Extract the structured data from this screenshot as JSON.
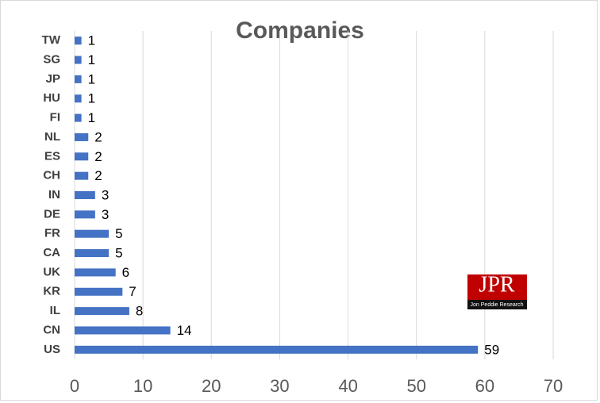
{
  "chart_data": {
    "type": "hbar",
    "title": "Companies",
    "categories": [
      "TW",
      "SG",
      "JP",
      "HU",
      "FI",
      "NL",
      "ES",
      "CH",
      "IN",
      "DE",
      "FR",
      "CA",
      "UK",
      "KR",
      "IL",
      "CN",
      "US"
    ],
    "values": [
      1,
      1,
      1,
      1,
      1,
      2,
      2,
      2,
      3,
      3,
      5,
      5,
      6,
      7,
      8,
      14,
      59
    ],
    "color": "#4472c4",
    "xlim": [
      0,
      70
    ],
    "xticks": [
      0,
      10,
      20,
      30,
      40,
      50,
      60,
      70
    ],
    "grid": true
  },
  "logo": {
    "mark": "JPR",
    "name": "Jon Peddie Research"
  }
}
